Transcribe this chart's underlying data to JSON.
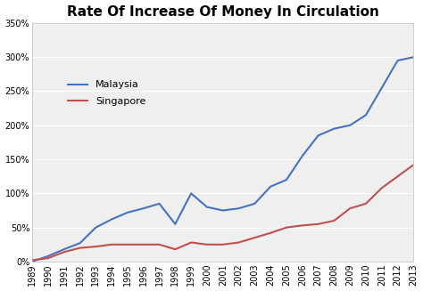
{
  "title": "Rate Of Increase Of Money In Circulation",
  "title_fontsize": 11,
  "title_fontweight": "bold",
  "years": [
    1989,
    1990,
    1991,
    1992,
    1993,
    1994,
    1995,
    1996,
    1997,
    1998,
    1999,
    2000,
    2001,
    2002,
    2003,
    2004,
    2005,
    2006,
    2007,
    2008,
    2009,
    2010,
    2011,
    2012,
    2013
  ],
  "malaysia": [
    0,
    8,
    18,
    27,
    50,
    62,
    72,
    78,
    85,
    55,
    100,
    80,
    75,
    78,
    85,
    110,
    120,
    155,
    185,
    195,
    200,
    215,
    255,
    295,
    300
  ],
  "singapore": [
    2,
    5,
    14,
    20,
    22,
    25,
    25,
    25,
    25,
    18,
    28,
    25,
    25,
    28,
    35,
    42,
    50,
    53,
    55,
    60,
    78,
    85,
    108,
    125,
    142
  ],
  "malaysia_color": "#4472C4",
  "singapore_color": "#C0504D",
  "ylim_min": 0,
  "ylim_max": 350,
  "yticks": [
    0,
    50,
    100,
    150,
    200,
    250,
    300,
    350
  ],
  "ytick_labels": [
    "0%",
    "50%",
    "100%",
    "150%",
    "200%",
    "250%",
    "300%",
    "350%"
  ],
  "legend_malaysia": "Malaysia",
  "legend_singapore": "Singapore",
  "background_color": "#ffffff",
  "plot_bg_color": "#f0efef",
  "grid_color": "#ffffff",
  "line_width": 1.5,
  "tick_fontsize": 7,
  "legend_fontsize": 8
}
